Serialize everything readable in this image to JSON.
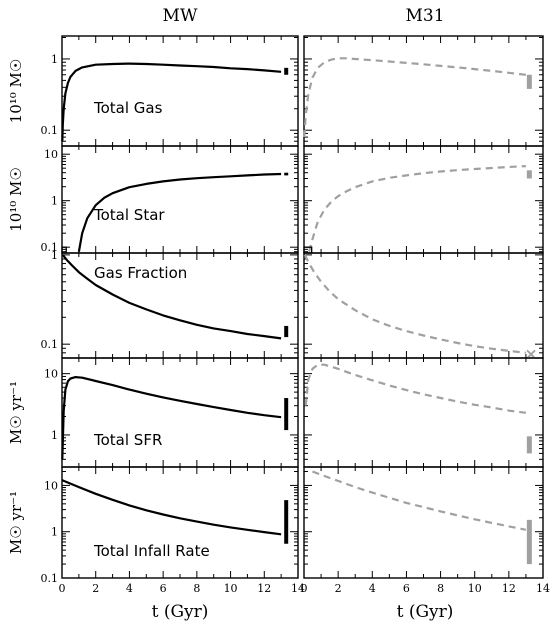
{
  "figure": {
    "column_titles": [
      "MW",
      "M31"
    ],
    "xlabel": "t (Gyr)"
  },
  "chart_data": [
    {
      "type": "line",
      "panel": "Total Gas",
      "column": "MW",
      "label": "Total Gas",
      "ylabel": "10¹⁰ M☉",
      "yscale": "log",
      "xlim": [
        0,
        14
      ],
      "ylim": [
        0.06,
        2.1
      ],
      "yticks": [
        {
          "v": 0.1,
          "t": "0.1"
        },
        {
          "v": 1,
          "t": "1"
        }
      ],
      "series": [
        {
          "style": "solid",
          "color": "#000000",
          "x": [
            0.02,
            0.05,
            0.1,
            0.2,
            0.35,
            0.5,
            0.8,
            1.2,
            2,
            3,
            4,
            5,
            6,
            7,
            8,
            9,
            10,
            11,
            12,
            13
          ],
          "y": [
            0.07,
            0.12,
            0.2,
            0.33,
            0.46,
            0.56,
            0.68,
            0.76,
            0.83,
            0.85,
            0.86,
            0.85,
            0.83,
            0.81,
            0.79,
            0.77,
            0.74,
            0.72,
            0.69,
            0.66
          ]
        }
      ],
      "obs_bars": [
        {
          "x": 13.3,
          "ylow": 0.6,
          "yhigh": 0.75,
          "color": "#000000",
          "width": 4
        }
      ]
    },
    {
      "type": "line",
      "panel": "Total Gas",
      "column": "M31",
      "yscale": "log",
      "xlim": [
        0,
        14
      ],
      "ylim": [
        0.06,
        2.1
      ],
      "yticks": [
        {
          "v": 0.1,
          "t": ""
        },
        {
          "v": 1,
          "t": ""
        }
      ],
      "series": [
        {
          "style": "dashed",
          "color": "#a0a0a0",
          "x": [
            0.02,
            0.1,
            0.25,
            0.5,
            0.8,
            1.2,
            1.6,
            2,
            2.5,
            3,
            4,
            5,
            6,
            7,
            8,
            9,
            10,
            11,
            12,
            13
          ],
          "y": [
            0.08,
            0.16,
            0.32,
            0.55,
            0.75,
            0.9,
            0.98,
            1.02,
            1.02,
            1.0,
            0.96,
            0.92,
            0.88,
            0.84,
            0.8,
            0.76,
            0.72,
            0.68,
            0.64,
            0.6
          ]
        }
      ],
      "obs_bars": [
        {
          "x": 13.2,
          "ylow": 0.38,
          "yhigh": 0.6,
          "color": "#a0a0a0",
          "width": 5
        }
      ]
    },
    {
      "type": "line",
      "panel": "Total Star",
      "column": "MW",
      "label": "Total Star",
      "ylabel": "10¹⁰ M☉",
      "yscale": "log",
      "xlim": [
        0,
        14
      ],
      "ylim": [
        0.075,
        15
      ],
      "yticks": [
        {
          "v": 0.1,
          "t": "0.1"
        },
        {
          "v": 1,
          "t": "1"
        },
        {
          "v": 10,
          "t": "10"
        }
      ],
      "series": [
        {
          "style": "solid",
          "color": "#000000",
          "x": [
            1,
            1.2,
            1.5,
            2,
            2.5,
            3,
            4,
            5,
            6,
            7,
            8,
            9,
            10,
            11,
            12,
            13
          ],
          "y": [
            0.08,
            0.2,
            0.42,
            0.8,
            1.15,
            1.45,
            1.95,
            2.3,
            2.6,
            2.85,
            3.05,
            3.2,
            3.35,
            3.5,
            3.65,
            3.75
          ]
        }
      ],
      "obs_bars": [
        {
          "x": 13.3,
          "ylow": 3.5,
          "yhigh": 4.0,
          "color": "#000000",
          "width": 4
        }
      ],
      "box": {
        "x0": 0.0,
        "x1": 0.25,
        "y0": 0.075,
        "y1": 0.1,
        "color": "#000000"
      }
    },
    {
      "type": "line",
      "panel": "Total Star",
      "column": "M31",
      "yscale": "log",
      "xlim": [
        0,
        14
      ],
      "ylim": [
        0.075,
        15
      ],
      "yticks": [
        {
          "v": 0.1,
          "t": ""
        },
        {
          "v": 1,
          "t": ""
        },
        {
          "v": 10,
          "t": ""
        }
      ],
      "series": [
        {
          "style": "dashed",
          "color": "#a0a0a0",
          "x": [
            0.3,
            0.5,
            0.8,
            1.2,
            1.6,
            2,
            2.5,
            3,
            4,
            5,
            6,
            7,
            8,
            9,
            10,
            11,
            12,
            13
          ],
          "y": [
            0.08,
            0.15,
            0.35,
            0.65,
            0.95,
            1.25,
            1.6,
            1.95,
            2.6,
            3.1,
            3.5,
            3.9,
            4.25,
            4.55,
            4.8,
            5.05,
            5.3,
            5.55
          ]
        }
      ],
      "obs_bars": [
        {
          "x": 13.2,
          "ylow": 3.0,
          "yhigh": 4.5,
          "color": "#a0a0a0",
          "width": 5
        }
      ],
      "box": {
        "x0": 0.0,
        "x1": 0.45,
        "y0": 0.075,
        "y1": 0.1,
        "color": "#000000"
      }
    },
    {
      "type": "line",
      "panel": "Gas Fraction",
      "column": "MW",
      "label": "Gas Fraction",
      "ylabel": "",
      "yscale": "log",
      "xlim": [
        0,
        14
      ],
      "ylim": [
        0.07,
        1.05
      ],
      "yticks": [
        {
          "v": 0.1,
          "t": "0.1"
        },
        {
          "v": 1,
          "t": "1"
        }
      ],
      "series": [
        {
          "style": "solid",
          "color": "#000000",
          "x": [
            0.05,
            0.3,
            0.6,
            1,
            1.5,
            2,
            3,
            4,
            5,
            6,
            7,
            8,
            9,
            10,
            11,
            12,
            13
          ],
          "y": [
            1.0,
            0.87,
            0.76,
            0.64,
            0.54,
            0.46,
            0.36,
            0.29,
            0.245,
            0.21,
            0.185,
            0.165,
            0.15,
            0.14,
            0.13,
            0.123,
            0.116
          ]
        }
      ],
      "obs_bars": [
        {
          "x": 13.3,
          "ylow": 0.12,
          "yhigh": 0.16,
          "color": "#000000",
          "width": 4
        }
      ]
    },
    {
      "type": "line",
      "panel": "Gas Fraction",
      "column": "M31",
      "yscale": "log",
      "xlim": [
        0,
        14
      ],
      "ylim": [
        0.07,
        1.05
      ],
      "yticks": [
        {
          "v": 0.1,
          "t": ""
        },
        {
          "v": 1,
          "t": ""
        }
      ],
      "series": [
        {
          "style": "dashed",
          "color": "#a0a0a0",
          "x": [
            0.05,
            0.3,
            0.6,
            1,
            1.5,
            2,
            3,
            4,
            5,
            6,
            7,
            8,
            9,
            10,
            11,
            12,
            13
          ],
          "y": [
            1.0,
            0.8,
            0.64,
            0.5,
            0.39,
            0.32,
            0.24,
            0.19,
            0.16,
            0.14,
            0.125,
            0.113,
            0.103,
            0.095,
            0.089,
            0.084,
            0.08
          ]
        }
      ],
      "cross_marker": {
        "x": 13.3,
        "y": 0.077,
        "color": "#a0a0a0"
      }
    },
    {
      "type": "line",
      "panel": "Total SFR",
      "column": "MW",
      "label": "Total SFR",
      "ylabel": "M☉ yr⁻¹",
      "yscale": "log",
      "xlim": [
        0,
        14
      ],
      "ylim": [
        0.3,
        18
      ],
      "yticks": [
        {
          "v": 1,
          "t": "1"
        },
        {
          "v": 10,
          "t": "10"
        }
      ],
      "series": [
        {
          "style": "solid",
          "color": "#000000",
          "x": [
            0.02,
            0.1,
            0.2,
            0.35,
            0.5,
            0.8,
            1.2,
            2,
            3,
            4,
            5,
            6,
            7,
            8,
            9,
            10,
            11,
            12,
            13
          ],
          "y": [
            0.4,
            2.5,
            5.5,
            7.5,
            8.3,
            8.8,
            8.6,
            7.6,
            6.5,
            5.5,
            4.7,
            4.1,
            3.6,
            3.2,
            2.85,
            2.55,
            2.3,
            2.1,
            1.95
          ]
        }
      ],
      "obs_bars": [
        {
          "x": 13.3,
          "ylow": 1.2,
          "yhigh": 4.0,
          "color": "#000000",
          "width": 4
        }
      ]
    },
    {
      "type": "line",
      "panel": "Total SFR",
      "column": "M31",
      "yscale": "log",
      "xlim": [
        0,
        14
      ],
      "ylim": [
        0.3,
        18
      ],
      "yticks": [
        {
          "v": 1,
          "t": ""
        },
        {
          "v": 10,
          "t": ""
        }
      ],
      "series": [
        {
          "style": "dashed",
          "color": "#a0a0a0",
          "x": [
            0.1,
            0.25,
            0.5,
            0.8,
            1.2,
            1.6,
            2,
            3,
            4,
            5,
            6,
            7,
            8,
            9,
            10,
            11,
            12,
            13
          ],
          "y": [
            3,
            8,
            12,
            14,
            14,
            13,
            12,
            9.5,
            7.8,
            6.4,
            5.4,
            4.6,
            4.0,
            3.5,
            3.1,
            2.8,
            2.5,
            2.3
          ]
        }
      ],
      "obs_bars": [
        {
          "x": 13.2,
          "ylow": 0.5,
          "yhigh": 0.95,
          "color": "#a0a0a0",
          "width": 5
        }
      ]
    },
    {
      "type": "line",
      "panel": "Total Infall Rate",
      "column": "MW",
      "label": "Total Infall Rate",
      "ylabel": "M☉ yr⁻¹",
      "yscale": "log",
      "xlim": [
        0,
        14
      ],
      "ylim": [
        0.1,
        25
      ],
      "yticks": [
        {
          "v": 0.1,
          "t": "0.1"
        },
        {
          "v": 1,
          "t": "1"
        },
        {
          "v": 10,
          "t": "10"
        }
      ],
      "series": [
        {
          "style": "solid",
          "color": "#000000",
          "x": [
            0,
            1,
            2,
            3,
            4,
            5,
            6,
            7,
            8,
            9,
            10,
            11,
            12,
            13
          ],
          "y": [
            13,
            9.2,
            6.6,
            4.9,
            3.7,
            2.9,
            2.35,
            1.95,
            1.65,
            1.42,
            1.24,
            1.1,
            0.98,
            0.88
          ]
        }
      ],
      "obs_bars": [
        {
          "x": 13.3,
          "ylow": 0.55,
          "yhigh": 4.8,
          "color": "#000000",
          "width": 4
        }
      ]
    },
    {
      "type": "line",
      "panel": "Total Infall Rate",
      "column": "M31",
      "yscale": "log",
      "xlim": [
        0,
        14
      ],
      "ylim": [
        0.1,
        25
      ],
      "yticks": [
        {
          "v": 0.1,
          "t": ""
        },
        {
          "v": 1,
          "t": ""
        },
        {
          "v": 10,
          "t": ""
        }
      ],
      "series": [
        {
          "style": "dashed",
          "color": "#a0a0a0",
          "x": [
            0.5,
            1,
            2,
            3,
            4,
            5,
            6,
            7,
            8,
            9,
            10,
            11,
            12,
            13
          ],
          "y": [
            20,
            17,
            12.5,
            9.2,
            7,
            5.4,
            4.2,
            3.4,
            2.75,
            2.25,
            1.85,
            1.55,
            1.3,
            1.1
          ]
        }
      ],
      "obs_bars": [
        {
          "x": 13.2,
          "ylow": 0.2,
          "yhigh": 1.8,
          "color": "#a0a0a0",
          "width": 5
        }
      ]
    }
  ],
  "x_ticks": [
    0,
    2,
    4,
    6,
    8,
    10,
    12,
    14
  ]
}
